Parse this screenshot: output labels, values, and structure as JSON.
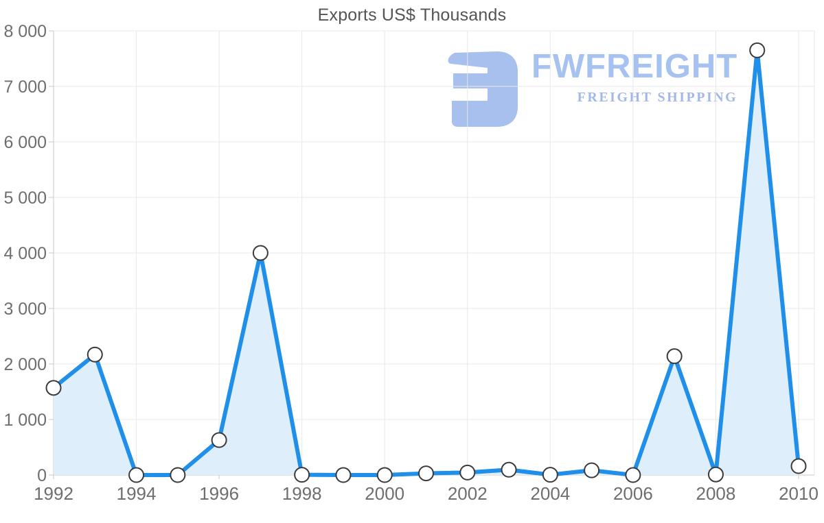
{
  "title": "Exports US$ Thousands",
  "watermark": {
    "brand": "FWFREIGHT",
    "tagline": "FREIGHT SHIPPING",
    "icon": "fwfreight-logo-icon",
    "icon_color": "#a8c0ed",
    "brand_color": "#a5c2f1",
    "tagline_color": "#a3b7ea"
  },
  "chart_data": {
    "type": "area",
    "title": "Exports US$ Thousands",
    "x": [
      1992,
      1993,
      1994,
      1995,
      1996,
      1997,
      1998,
      1999,
      2000,
      2001,
      2002,
      2003,
      2004,
      2005,
      2006,
      2007,
      2008,
      2009,
      2010
    ],
    "values": [
      1570,
      2170,
      0,
      0,
      630,
      4000,
      5,
      0,
      0,
      30,
      45,
      95,
      5,
      85,
      0,
      2140,
      10,
      7650,
      160
    ],
    "series_name": "Exports US$ Thousands",
    "xlim": [
      1992,
      2010
    ],
    "ylim": [
      0,
      8000
    ],
    "x_ticks": [
      1992,
      1994,
      1996,
      1998,
      2000,
      2002,
      2004,
      2006,
      2008,
      2010
    ],
    "x_tick_labels": [
      "1992",
      "1994",
      "1996",
      "1998",
      "2000",
      "2002",
      "2004",
      "2006",
      "2008",
      "2010"
    ],
    "y_ticks": [
      0,
      1000,
      2000,
      3000,
      4000,
      5000,
      6000,
      7000,
      8000
    ],
    "y_tick_labels": [
      "0",
      "1 000",
      "2 000",
      "3 000",
      "4 000",
      "5 000",
      "6 000",
      "7 000",
      "8 000"
    ],
    "grid": "both",
    "legend": "none",
    "line_color": "#1f8fea",
    "fill_color": "#dfeefb",
    "marker": "white-circle-dark-ring",
    "marker_stroke": "#3a3a3a"
  }
}
